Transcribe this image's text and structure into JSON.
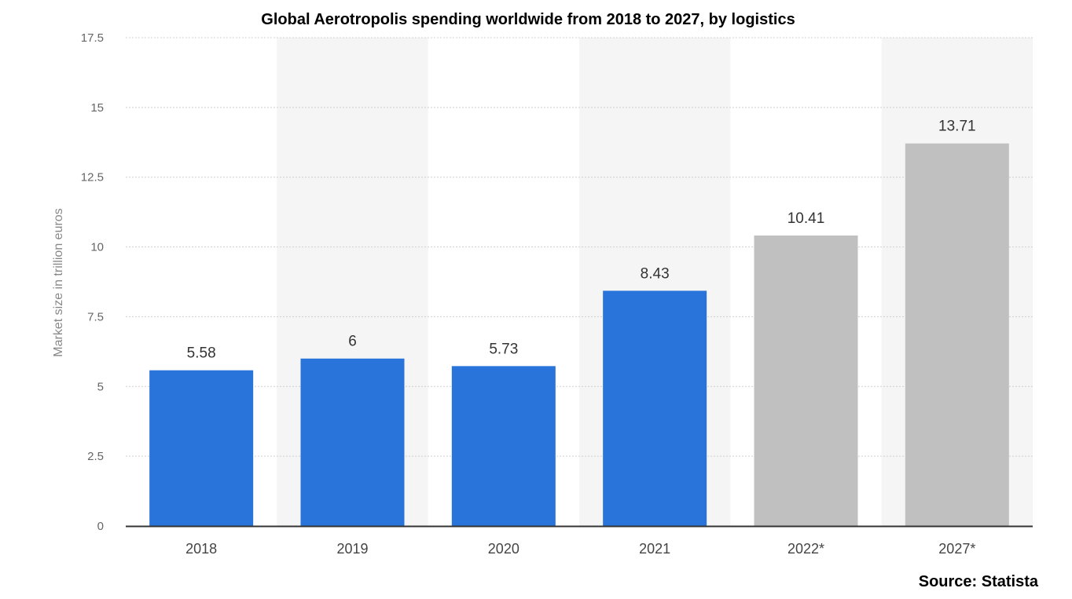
{
  "chart_data": {
    "type": "bar",
    "title": "Global Aerotropolis spending worldwide from 2018 to 2027, by logistics",
    "ylabel": "Market size in trillion euros",
    "xlabel": "",
    "categories": [
      "2018",
      "2019",
      "2020",
      "2021",
      "2022*",
      "2027*"
    ],
    "values": [
      5.58,
      6,
      5.73,
      8.43,
      10.41,
      13.71
    ],
    "data_labels": [
      "5.58",
      "6",
      "5.73",
      "8.43",
      "10.41",
      "13.71"
    ],
    "ylim": [
      0,
      17.5
    ],
    "yticks": [
      "0",
      "2.5",
      "5",
      "7.5",
      "10",
      "12.5",
      "15",
      "17.5"
    ],
    "ytick_values": [
      0,
      2.5,
      5,
      7.5,
      10,
      12.5,
      15,
      17.5
    ],
    "grid": true,
    "colors": {
      "actual": "#2874db",
      "forecast": "#c0c0c0",
      "alt_band": "#f5f5f5",
      "grid": "#d0d0d0",
      "axis": "#333333"
    },
    "forecast_flags": [
      false,
      false,
      false,
      false,
      true,
      true
    ],
    "source": "Source: Statista"
  }
}
